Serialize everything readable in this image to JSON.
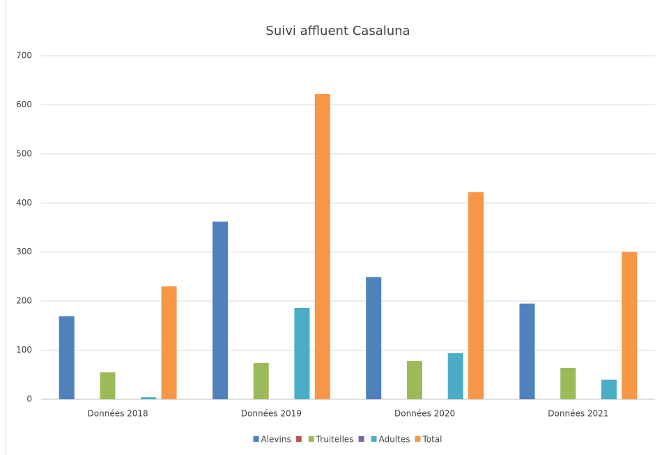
{
  "chart_data": {
    "type": "bar",
    "title": "Suivi affluent Casaluna",
    "categories": [
      "Données 2018",
      "Données 2019",
      "Données 2020",
      "Données 2021"
    ],
    "series": [
      {
        "name": "Alevins",
        "color": "#4f81bd",
        "values": [
          169,
          362,
          249,
          195
        ]
      },
      {
        "name": null,
        "color": "#c0504d",
        "values": [
          null,
          null,
          null,
          null
        ]
      },
      {
        "name": "Truitelles",
        "color": "#9bbb59",
        "values": [
          55,
          74,
          78,
          64
        ]
      },
      {
        "name": null,
        "color": "#8064a2",
        "values": [
          null,
          null,
          null,
          null
        ]
      },
      {
        "name": "Adultes",
        "color": "#4bacc6",
        "values": [
          4,
          186,
          94,
          40
        ]
      },
      {
        "name": "Total",
        "color": "#f79646",
        "values": [
          230,
          622,
          422,
          300
        ]
      }
    ],
    "ylim": [
      0,
      700
    ],
    "yticks": [
      0,
      100,
      200,
      300,
      400,
      500,
      600,
      700
    ],
    "grid": true,
    "legend": "bottom"
  }
}
